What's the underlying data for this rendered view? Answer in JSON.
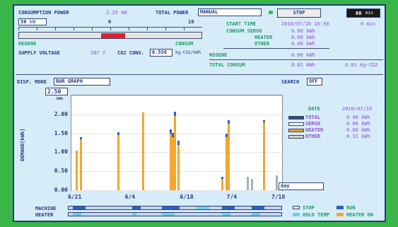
{
  "header": {
    "consumption_power_label": "CONSUMPTION POWER",
    "consumption_power_value": "2.25 kW",
    "total_power_label": "TOTAL POWER",
    "total_power_mode": "MANUAL",
    "stop_label": "STOP",
    "counter_value": "00",
    "counter_unit": "min"
  },
  "gauge": {
    "input_value": "50",
    "input_unit": "kW",
    "scale_zero": "0",
    "scale_max": "10",
    "regene_label": "REGENE",
    "consum_label": "CONSUM",
    "indicator_color": "#e0202a"
  },
  "supply": {
    "voltage_label": "SUPPLY VOLTAGE",
    "voltage_value": "207 V",
    "co2_label": "CO2 CONV.",
    "co2_value": "0.556",
    "co2_unit": "kg-CO2/kWh"
  },
  "summary": {
    "start_time_label": "START TIME",
    "start_time_value": "2010/07/20 16:50",
    "elapsed": "0 min",
    "consum_servo_label": "CONSUM SERVO",
    "consum_servo_value": "0.00 kWh",
    "heater_label": "HEATER",
    "heater_value": "0.00 kWh",
    "other_label": "OTHER",
    "other_value": "0.00 kWh",
    "regene_label": "REGENE",
    "regene_value": "0.00 kWh",
    "total_consum_label": "TOTAL CONSUM",
    "total_consum_value": "0.01 kWh",
    "total_co2_value": "0.01 kg-CO2"
  },
  "display": {
    "disp_mode_label": "DISP. MODE",
    "disp_mode_value": "BAR GRAPH",
    "search_label": "SEARCH",
    "search_value": "OFF",
    "scale_top": "2.50",
    "scale_top_unit": "kWh",
    "ylabel": "DEMAND[kWh]",
    "period_value": "day"
  },
  "date_panel": {
    "date_label": "DATE",
    "date_value": "2010/07/19",
    "rows": [
      {
        "label": "TOTAL",
        "value": "0.40 kWh",
        "color": "#3a4a6e"
      },
      {
        "label": "SERVO",
        "value": "0.00 kWh",
        "color": "#ffffff"
      },
      {
        "label": "HEATER",
        "value": "0.00 kWh",
        "color": "#f4a62e"
      },
      {
        "label": "OTHER",
        "value": "0.31 kWh",
        "color": "#e0d2c3"
      }
    ]
  },
  "timeline": {
    "machine_label": "MACHINE",
    "heater_label": "HEATER"
  },
  "state_key": {
    "stop_label": "STOP",
    "run_label": "RUN",
    "hold_temp_label": "HOLD TEMP",
    "heater_on_label": "HEATER ON",
    "stop_color": "#d9ecfb",
    "run_color": "#2f5fc7",
    "hold_color": "#6fd0e8",
    "heater_on_color": "#f4a62e"
  },
  "chart_data": {
    "type": "bar",
    "ylim": [
      0,
      2.5
    ],
    "yticks": [
      "2.50",
      "2.00",
      "1.50",
      "1.00",
      "0.50",
      "0.00"
    ],
    "xtick_labels": [
      "6/21",
      "6/4",
      "6/18",
      "7/4",
      "7/18"
    ],
    "series_colors": {
      "servo": "#2f5fc7",
      "heater": "#f4a62e",
      "other": "#9fb2c8"
    },
    "bars": [
      {
        "x": 0.02,
        "heater": 1.05,
        "servo": 0.0,
        "other": 0.0
      },
      {
        "x": 0.04,
        "heater": 1.35,
        "servo": 0.05,
        "other": 0.0
      },
      {
        "x": 0.22,
        "heater": 1.45,
        "servo": 0.08,
        "other": 0.0
      },
      {
        "x": 0.34,
        "heater": 2.05,
        "servo": 0.0,
        "other": 0.0
      },
      {
        "x": 0.47,
        "heater": 1.5,
        "servo": 0.1,
        "other": 0.0
      },
      {
        "x": 0.48,
        "heater": 1.4,
        "servo": 0.12,
        "other": 0.0
      },
      {
        "x": 0.49,
        "heater": 1.95,
        "servo": 0.12,
        "other": 0.0
      },
      {
        "x": 0.51,
        "heater": 1.2,
        "servo": 0.1,
        "other": 0.0
      },
      {
        "x": 0.72,
        "heater": 0.3,
        "servo": 0.05,
        "other": 0.0
      },
      {
        "x": 0.74,
        "heater": 1.4,
        "servo": 0.1,
        "other": 0.0
      },
      {
        "x": 0.75,
        "heater": 1.75,
        "servo": 0.1,
        "other": 0.0
      },
      {
        "x": 0.84,
        "heater": 0.0,
        "servo": 0.0,
        "other": 0.35
      },
      {
        "x": 0.86,
        "heater": 0.0,
        "servo": 0.0,
        "other": 0.3
      },
      {
        "x": 0.92,
        "heater": 1.8,
        "servo": 0.05,
        "other": 0.0
      },
      {
        "x": 0.98,
        "heater": 0.0,
        "servo": 0.0,
        "other": 0.4
      }
    ]
  }
}
